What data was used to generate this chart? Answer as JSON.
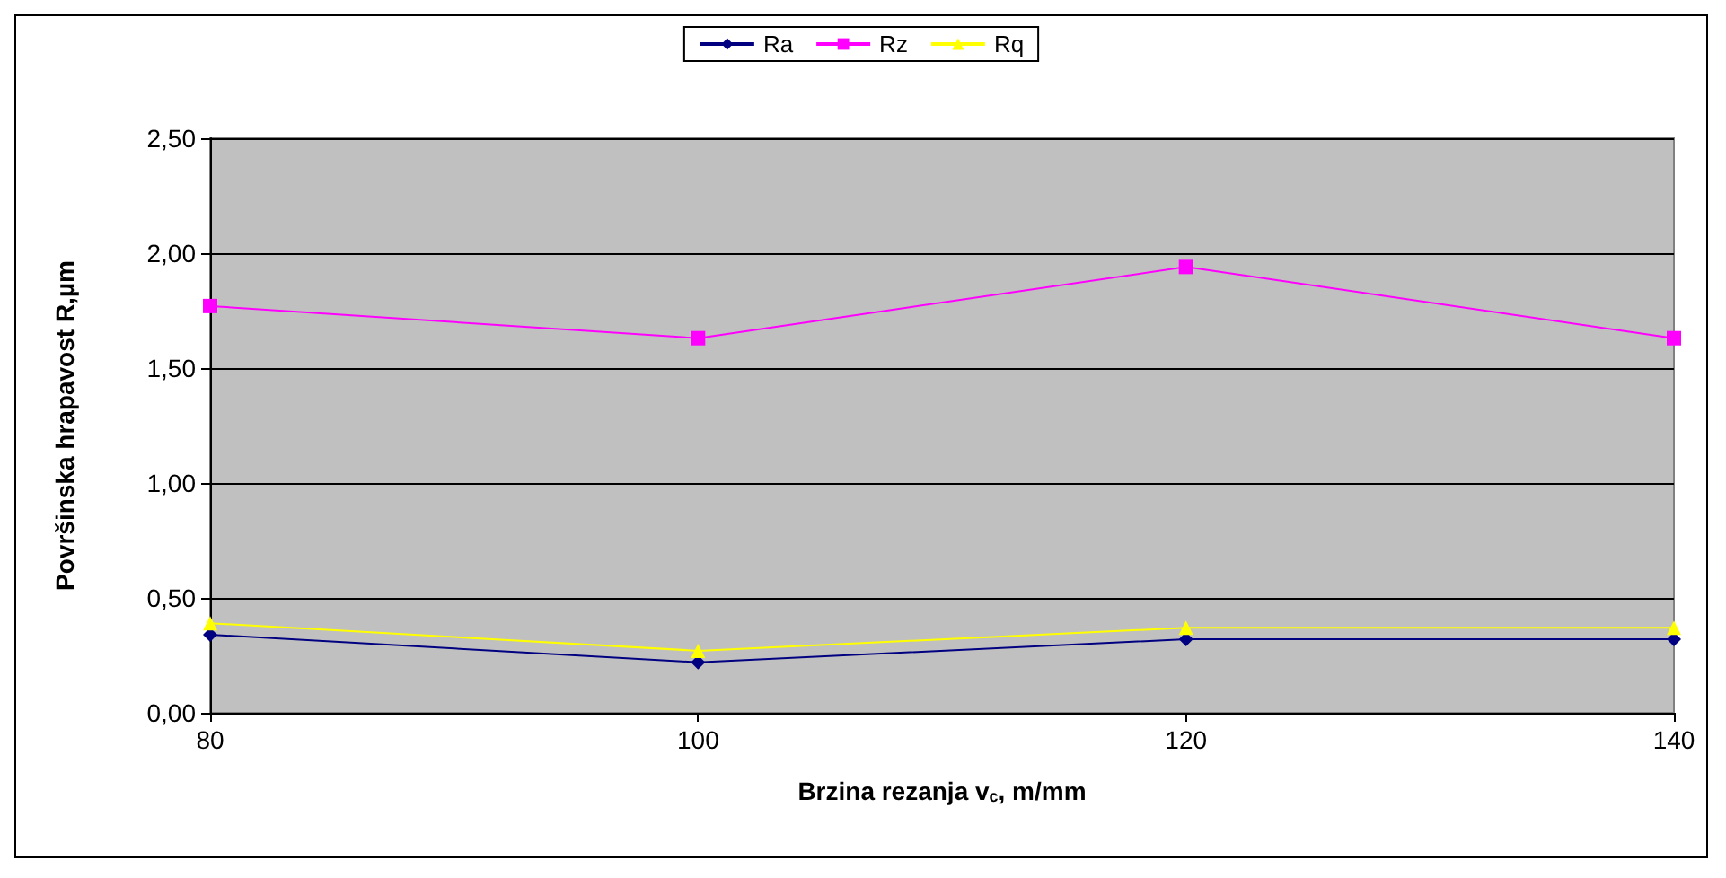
{
  "chart_data": {
    "type": "line",
    "xlabel": "Brzina rezanja v$_{c}$, m/mm",
    "ylabel": "Površinska hrapavost R,µm",
    "x": [
      80,
      100,
      120,
      140
    ],
    "series": [
      {
        "name": "Ra",
        "color": "#000080",
        "marker": "diamond",
        "values": [
          0.34,
          0.22,
          0.32,
          0.32
        ]
      },
      {
        "name": "Rz",
        "color": "#ff00ff",
        "marker": "square",
        "values": [
          1.77,
          1.63,
          1.94,
          1.63
        ]
      },
      {
        "name": "Rq",
        "color": "#ffff00",
        "marker": "triangle",
        "values": [
          0.39,
          0.27,
          0.37,
          0.37
        ]
      }
    ],
    "xlim": [
      80,
      140
    ],
    "xticks": [
      80,
      100,
      120,
      140
    ],
    "ylim": [
      0,
      2.5
    ],
    "yticks": [
      {
        "value": 0,
        "label": "0,00"
      },
      {
        "value": 0.5,
        "label": "0,50"
      },
      {
        "value": 1,
        "label": "1,00"
      },
      {
        "value": 1.5,
        "label": "1,50"
      },
      {
        "value": 2,
        "label": "2,00"
      },
      {
        "value": 2.5,
        "label": "2,50"
      }
    ],
    "grid": "y",
    "legend": "top",
    "line_style": "solid"
  }
}
